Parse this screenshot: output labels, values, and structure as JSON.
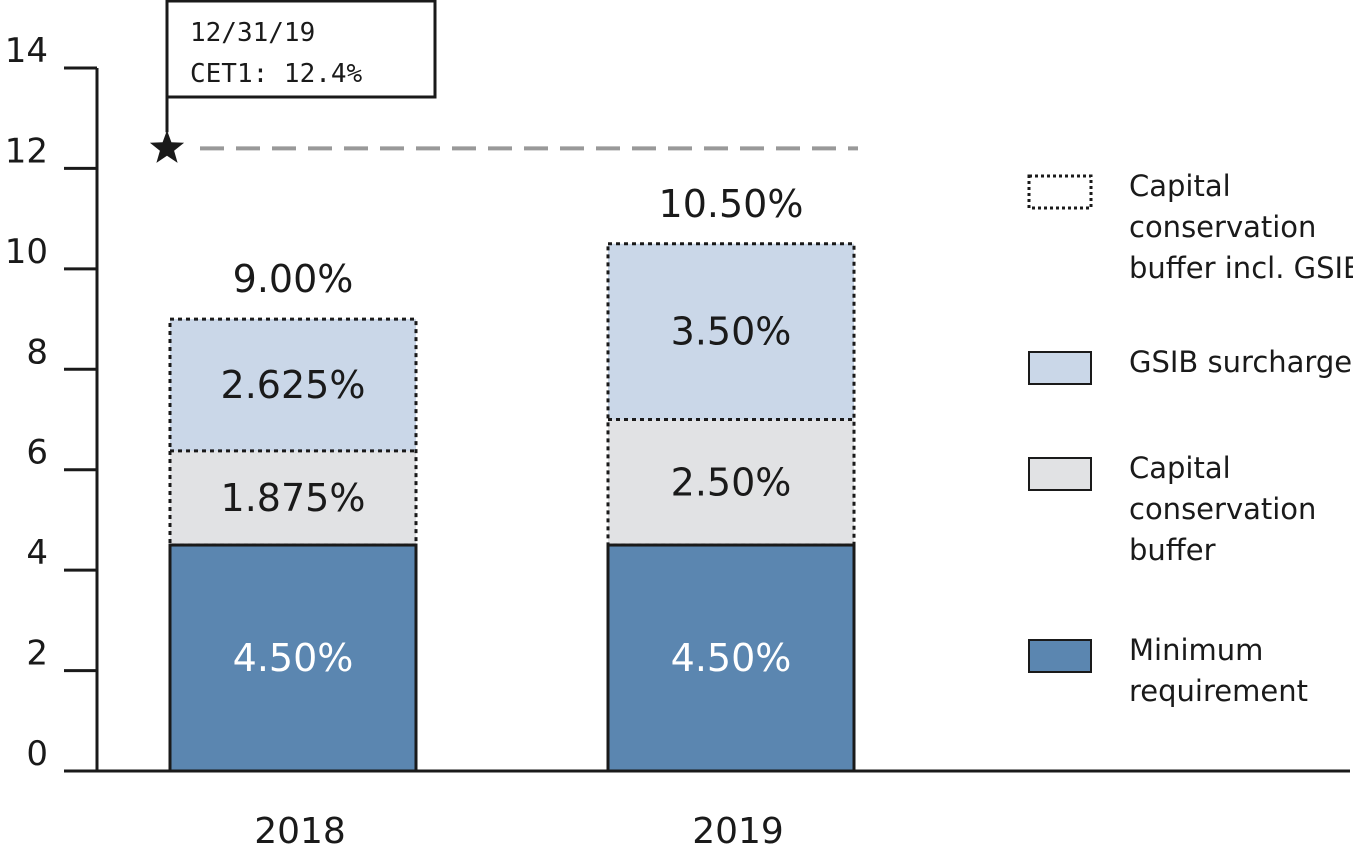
{
  "chart_data": {
    "type": "bar",
    "stacked": true,
    "categories": [
      "2018",
      "2019"
    ],
    "ylim": [
      0,
      14
    ],
    "yticks": [
      0,
      2,
      4,
      6,
      8,
      10,
      12,
      14
    ],
    "ytick_labels": [
      "0",
      "2",
      "4",
      "6",
      "8",
      "10",
      "12",
      "14"
    ],
    "series": [
      {
        "name": "Minimum requirement",
        "values": [
          4.5,
          4.5
        ],
        "labels": [
          "4.50%",
          "4.50%"
        ],
        "color": "#5b86b0",
        "label_color": "#ffffff"
      },
      {
        "name": "Capital conservation buffer",
        "values": [
          1.875,
          2.5
        ],
        "labels": [
          "1.875%",
          "2.50%"
        ],
        "color": "#e1e2e4",
        "label_color": "#1a1a1a"
      },
      {
        "name": "GSIB surcharge",
        "values": [
          2.625,
          3.5
        ],
        "labels": [
          "2.625%",
          "3.50%"
        ],
        "color": "#cad7e8",
        "label_color": "#1a1a1a"
      }
    ],
    "totals": [
      9.0,
      10.5
    ],
    "total_labels": [
      "9.00%",
      "10.50%"
    ],
    "reference_line": {
      "value": 12.4,
      "style": "dashed",
      "color": "#999999"
    },
    "annotation": {
      "lines": [
        "12/31/19",
        "CET1: 12.4%"
      ],
      "marker": "star",
      "value": 12.4
    },
    "legend": {
      "position": "right",
      "items": [
        {
          "lines": [
            "Capital",
            "conservation",
            "buffer incl. GSIB"
          ],
          "swatch": "dotted"
        },
        {
          "lines": [
            "GSIB surcharge"
          ],
          "swatch": "#cad7e8"
        },
        {
          "lines": [
            "Capital",
            "conservation",
            "buffer"
          ],
          "swatch": "#e1e2e4"
        },
        {
          "lines": [
            "Minimum",
            "requirement"
          ],
          "swatch": "#5b86b0"
        }
      ]
    },
    "title": "",
    "xlabel": "",
    "ylabel": ""
  }
}
